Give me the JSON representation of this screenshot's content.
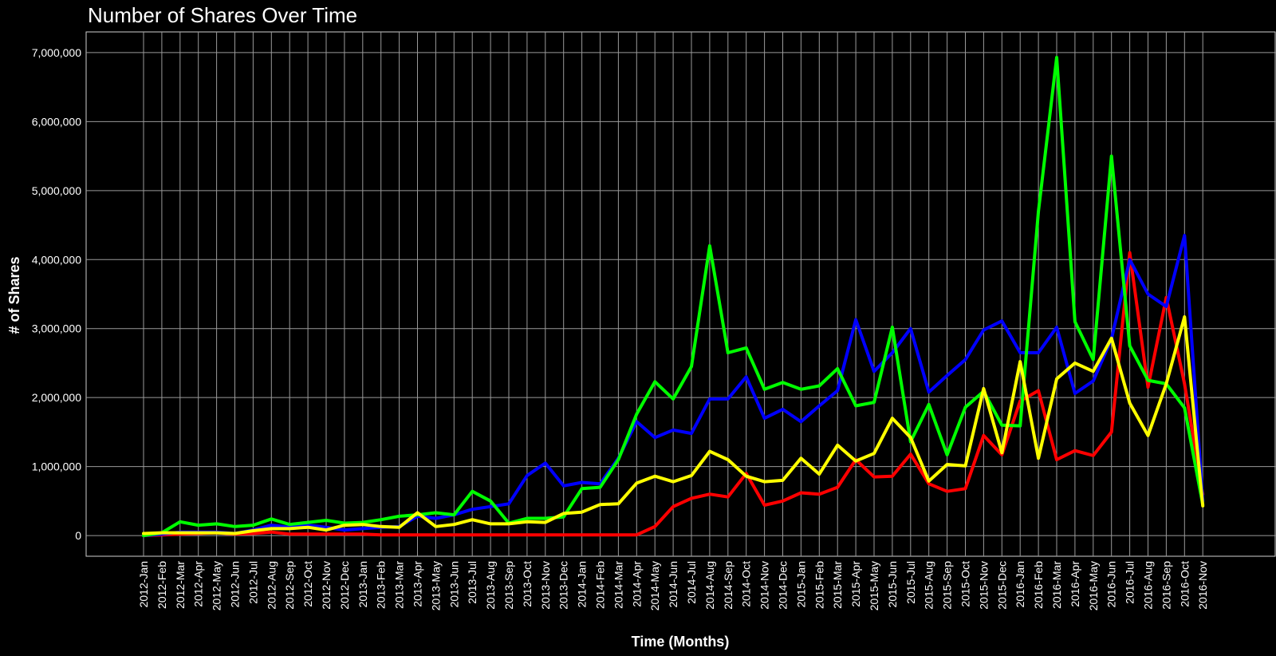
{
  "chart_data": {
    "type": "line",
    "title": "Number of Shares Over Time",
    "xlabel": "Time (Months)",
    "ylabel": "# of Shares",
    "ylim": [
      -300000,
      7300000
    ],
    "yticks": [
      0,
      1000000,
      2000000,
      3000000,
      4000000,
      5000000,
      6000000,
      7000000
    ],
    "ytick_labels": [
      "0",
      "1,000,000",
      "2,000,000",
      "3,000,000",
      "4,000,000",
      "5,000,000",
      "6,000,000",
      "7,000,000"
    ],
    "grid": true,
    "categories": [
      "2012-Jan",
      "2012-Feb",
      "2012-Mar",
      "2012-Apr",
      "2012-May",
      "2012-Jun",
      "2012-Jul",
      "2012-Aug",
      "2012-Sep",
      "2012-Oct",
      "2012-Nov",
      "2012-Dec",
      "2013-Jan",
      "2013-Feb",
      "2013-Mar",
      "2013-Apr",
      "2013-May",
      "2013-Jun",
      "2013-Jul",
      "2013-Aug",
      "2013-Sep",
      "2013-Oct",
      "2013-Nov",
      "2013-Dec",
      "2014-Jan",
      "2014-Feb",
      "2014-Mar",
      "2014-Apr",
      "2014-May",
      "2014-Jun",
      "2014-Jul",
      "2014-Aug",
      "2014-Sep",
      "2014-Oct",
      "2014-Nov",
      "2014-Dec",
      "2015-Jan",
      "2015-Feb",
      "2015-Mar",
      "2015-Apr",
      "2015-May",
      "2015-Jun",
      "2015-Jul",
      "2015-Aug",
      "2015-Sep",
      "2015-Oct",
      "2015-Nov",
      "2015-Dec",
      "2016-Jan",
      "2016-Feb",
      "2016-Mar",
      "2016-Apr",
      "2016-May",
      "2016-Jun",
      "2016-Jul",
      "2016-Aug",
      "2016-Sep",
      "2016-Oct",
      "2016-Nov"
    ],
    "series": [
      {
        "color": "#ff0000",
        "values": [
          0,
          10000,
          20000,
          30000,
          40000,
          20000,
          30000,
          50000,
          20000,
          20000,
          20000,
          20000,
          20000,
          10000,
          10000,
          10000,
          10000,
          10000,
          10000,
          10000,
          10000,
          10000,
          10000,
          10000,
          10000,
          10000,
          10000,
          10000,
          130000,
          420000,
          540000,
          600000,
          560000,
          900000,
          440000,
          500000,
          620000,
          600000,
          700000,
          1100000,
          850000,
          860000,
          1180000,
          750000,
          640000,
          680000,
          1450000,
          1170000,
          1950000,
          2100000,
          1100000,
          1230000,
          1160000,
          1500000,
          4100000,
          2150000,
          3450000,
          2200000,
          600000
        ]
      },
      {
        "color": "#0000ff",
        "values": [
          0,
          20000,
          50000,
          50000,
          50000,
          30000,
          80000,
          150000,
          120000,
          150000,
          120000,
          80000,
          100000,
          120000,
          130000,
          280000,
          250000,
          300000,
          380000,
          420000,
          460000,
          870000,
          1050000,
          720000,
          770000,
          750000,
          1120000,
          1650000,
          1420000,
          1530000,
          1480000,
          1980000,
          1980000,
          2300000,
          1700000,
          1830000,
          1650000,
          1880000,
          2100000,
          3130000,
          2380000,
          2650000,
          3000000,
          2080000,
          2320000,
          2550000,
          2980000,
          3110000,
          2650000,
          2650000,
          3020000,
          2060000,
          2240000,
          2850000,
          4000000,
          3500000,
          3320000,
          4350000,
          500000
        ]
      },
      {
        "color": "#00ff00",
        "values": [
          0,
          40000,
          200000,
          150000,
          170000,
          130000,
          150000,
          240000,
          160000,
          190000,
          220000,
          180000,
          190000,
          230000,
          280000,
          300000,
          330000,
          300000,
          640000,
          500000,
          180000,
          250000,
          250000,
          270000,
          680000,
          700000,
          1100000,
          1760000,
          2230000,
          1980000,
          2450000,
          4200000,
          2650000,
          2720000,
          2120000,
          2220000,
          2120000,
          2170000,
          2420000,
          1880000,
          1930000,
          3020000,
          1360000,
          1900000,
          1170000,
          1860000,
          2090000,
          1600000,
          1590000,
          4700000,
          6930000,
          3100000,
          2550000,
          5500000,
          2750000,
          2250000,
          2200000,
          1850000,
          450000
        ]
      },
      {
        "color": "#ffff00",
        "values": [
          30000,
          40000,
          40000,
          40000,
          40000,
          30000,
          70000,
          100000,
          100000,
          120000,
          80000,
          150000,
          160000,
          130000,
          120000,
          330000,
          130000,
          160000,
          230000,
          170000,
          170000,
          200000,
          190000,
          320000,
          340000,
          450000,
          460000,
          760000,
          860000,
          780000,
          870000,
          1220000,
          1100000,
          860000,
          780000,
          800000,
          1120000,
          890000,
          1310000,
          1080000,
          1190000,
          1700000,
          1420000,
          790000,
          1030000,
          1010000,
          2130000,
          1200000,
          2520000,
          1120000,
          2270000,
          2500000,
          2380000,
          2860000,
          1920000,
          1450000,
          2200000,
          3170000,
          430000
        ]
      }
    ]
  }
}
